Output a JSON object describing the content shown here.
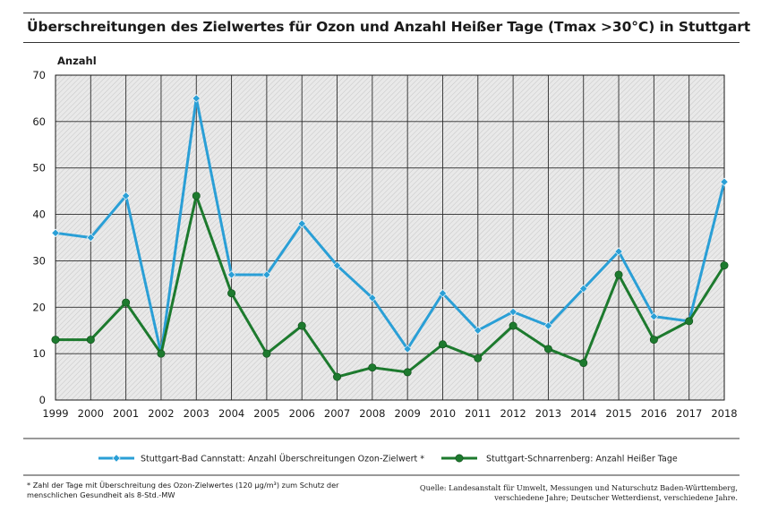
{
  "title": "Überschreitungen des Zielwertes für Ozon und Anzahl Heißer Tage (Tmax >30°C) in Stuttgart",
  "footnote": "* Zahl der Tage mit Überschreitung des Ozon-Zielwertes (120 µg/m³) zum Schutz der menschlichen Gesundheit als 8-Std.-MW",
  "source": "Quelle: Landesanstalt für Umwelt, Messungen und Naturschutz Baden-Württemberg, verschiedene Jahre; Deutscher Wetterdienst, verschiedene Jahre.",
  "chart_data": {
    "type": "line",
    "ylabel": "Anzahl",
    "xlabel": "",
    "ylim": [
      0,
      70
    ],
    "yticks": [
      0,
      10,
      20,
      30,
      40,
      50,
      60,
      70
    ],
    "grid": true,
    "legend_position": "bottom",
    "x": [
      "1999",
      "2000",
      "2001",
      "2002",
      "2003",
      "2004",
      "2005",
      "2006",
      "2007",
      "2008",
      "2009",
      "2010",
      "2011",
      "2012",
      "2013",
      "2014",
      "2015",
      "2016",
      "2017",
      "2018"
    ],
    "series": [
      {
        "name": "Stuttgart-Bad Cannstatt: Anzahl Überschreitungen Ozon-Zielwert *",
        "color": "#2a9fd6",
        "marker": "diamond",
        "values": [
          36,
          35,
          44,
          10,
          65,
          27,
          27,
          38,
          29,
          22,
          11,
          23,
          15,
          19,
          16,
          24,
          32,
          18,
          17,
          47
        ]
      },
      {
        "name": "Stuttgart-Schnarrenberg: Anzahl Heißer Tage",
        "color": "#1d7a2e",
        "marker": "circle",
        "values": [
          13,
          13,
          21,
          10,
          44,
          23,
          10,
          16,
          5,
          7,
          6,
          12,
          9,
          16,
          11,
          8,
          27,
          13,
          17,
          29
        ]
      }
    ]
  }
}
